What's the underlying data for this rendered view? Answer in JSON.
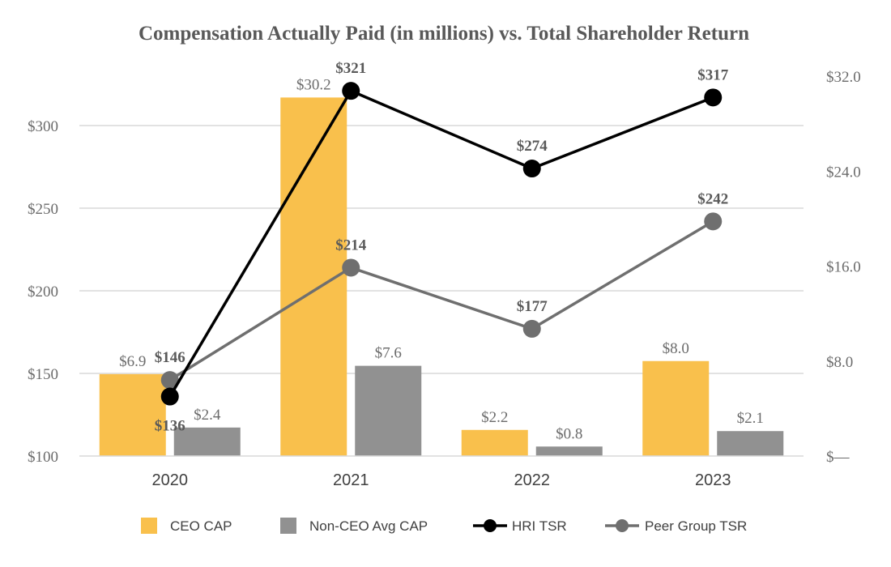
{
  "chart_data": {
    "type": "bar",
    "title": "Compensation Actually Paid (in millions) vs. Total Shareholder Return",
    "categories": [
      "2020",
      "2021",
      "2022",
      "2023"
    ],
    "left_axis": {
      "ticks": [
        "$100",
        "$150",
        "$200",
        "$250",
        "$300"
      ],
      "ylim": [
        100,
        330
      ]
    },
    "right_axis": {
      "ticks": [
        "$—",
        "$8.0",
        "$16.0",
        "$24.0",
        "$32.0"
      ],
      "ylim": [
        0,
        32
      ]
    },
    "bar_series": [
      {
        "name": "CEO CAP",
        "color": "#F9C04C",
        "values": [
          6.9,
          30.2,
          2.2,
          8.0
        ],
        "labels": [
          "$6.9",
          "$30.2",
          "$2.2",
          "$8.0"
        ],
        "axis": "right"
      },
      {
        "name": "Non-CEO Avg CAP",
        "color": "#919191",
        "values": [
          2.4,
          7.6,
          0.8,
          2.1
        ],
        "labels": [
          "$2.4",
          "$7.6",
          "$0.8",
          "$2.1"
        ],
        "axis": "right"
      }
    ],
    "line_series": [
      {
        "name": "HRI TSR",
        "color": "#000000",
        "values": [
          136,
          321,
          274,
          317
        ],
        "labels": [
          "$136",
          "$321",
          "$274",
          "$317"
        ],
        "axis": "left"
      },
      {
        "name": "Peer Group TSR",
        "color": "#6F6F6F",
        "values": [
          146,
          214,
          177,
          242
        ],
        "labels": [
          "$146",
          "$214",
          "$177",
          "$242"
        ],
        "axis": "left"
      }
    ],
    "grid": true,
    "legend_position": "bottom"
  }
}
